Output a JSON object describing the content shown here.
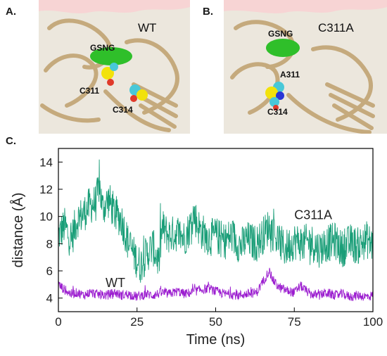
{
  "figure": {
    "panel_a": {
      "letter": "A.",
      "variant_label": "WT",
      "labels": {
        "ligand": "GSNG",
        "residue_1": "C311",
        "residue_2": "C314"
      }
    },
    "panel_b": {
      "letter": "B.",
      "variant_label": "C311A",
      "labels": {
        "ligand": "GSNG",
        "residue_1": "A311",
        "residue_2": "C314"
      }
    },
    "panel_c": {
      "letter": "C."
    },
    "colors": {
      "protein": "#b8965e",
      "membrane": "#f7d4d4",
      "ligand": "#2fbf2a",
      "sulfur": "#f2e20a",
      "carbon": "#49c8d8",
      "oxygen": "#e03a2a",
      "nitrogen": "#2a35d6"
    }
  },
  "chart_data": {
    "type": "line",
    "xlabel": "Time (ns)",
    "ylabel": "distance (Å)",
    "xlim": [
      0,
      100
    ],
    "ylim": [
      3,
      15
    ],
    "xticks": [
      0,
      25,
      50,
      75,
      100
    ],
    "yticks": [
      4,
      6,
      8,
      10,
      12,
      14
    ],
    "grid": false,
    "series": [
      {
        "name": "C311A",
        "color": "#1a9e78",
        "label_at": [
          75,
          9.8
        ],
        "x": [
          0,
          2,
          4,
          6,
          8,
          10,
          12,
          13,
          14,
          16,
          18,
          20,
          22,
          24,
          26,
          28,
          30,
          32,
          33,
          35,
          38,
          40,
          42,
          43,
          45,
          48,
          50,
          53,
          55,
          58,
          60,
          63,
          65,
          67,
          70,
          72,
          75,
          78,
          80,
          83,
          85,
          88,
          90,
          93,
          95,
          98,
          100
        ],
        "values": [
          8.6,
          9.3,
          8.2,
          9.8,
          10.2,
          10.8,
          11.0,
          12.4,
          10.6,
          11.2,
          10.2,
          9.8,
          8.2,
          7.2,
          6.4,
          7.2,
          7.8,
          6.6,
          9.2,
          8.6,
          8.8,
          8.4,
          9.3,
          10.2,
          9.0,
          8.4,
          8.6,
          8.2,
          8.6,
          7.8,
          8.3,
          8.0,
          8.6,
          9.3,
          8.2,
          7.6,
          8.2,
          8.0,
          8.2,
          7.6,
          8.0,
          8.2,
          7.6,
          8.1,
          7.8,
          8.3,
          7.9
        ]
      },
      {
        "name": "WT",
        "color": "#9b1ccf",
        "label_at": [
          15,
          4.8
        ],
        "x": [
          0,
          2,
          4,
          6,
          8,
          10,
          12,
          15,
          18,
          20,
          22,
          25,
          28,
          30,
          33,
          35,
          38,
          40,
          42,
          45,
          48,
          50,
          53,
          55,
          57,
          60,
          63,
          65,
          67,
          68,
          70,
          72,
          75,
          77,
          80,
          83,
          85,
          88,
          90,
          93,
          95,
          98,
          100
        ],
        "values": [
          5.0,
          4.6,
          4.3,
          4.4,
          4.2,
          4.4,
          4.3,
          4.2,
          4.4,
          4.2,
          4.3,
          4.1,
          4.3,
          4.2,
          4.4,
          4.3,
          4.5,
          4.3,
          4.4,
          4.6,
          4.7,
          4.5,
          4.3,
          4.3,
          4.2,
          4.3,
          4.4,
          5.2,
          6.0,
          5.4,
          4.8,
          4.6,
          4.4,
          4.9,
          4.3,
          4.2,
          4.4,
          4.2,
          4.3,
          4.1,
          4.2,
          4.1,
          4.2
        ]
      }
    ]
  }
}
